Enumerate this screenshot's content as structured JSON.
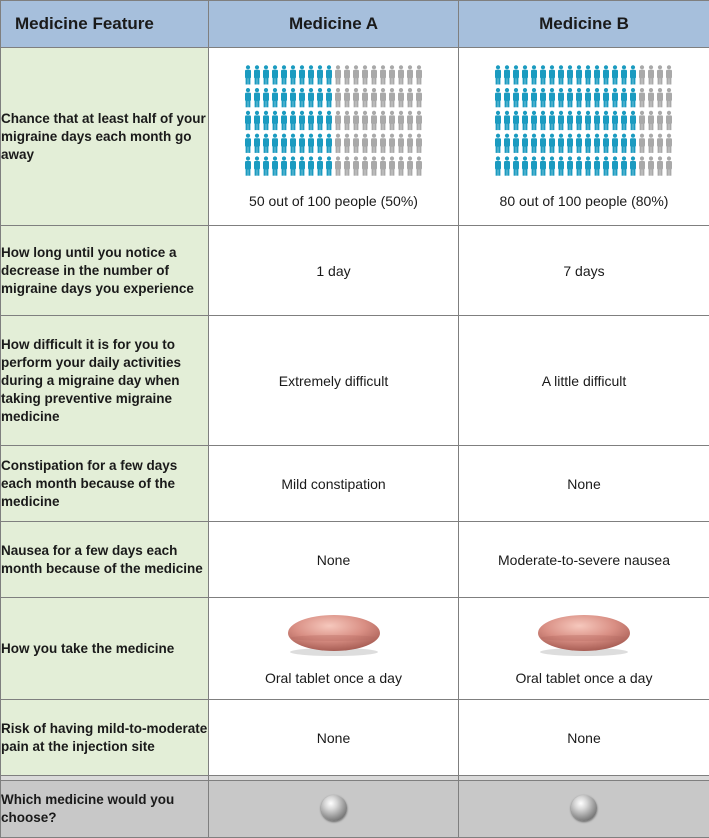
{
  "header": {
    "feature": "Medicine Feature",
    "medicine_a": "Medicine A",
    "medicine_b": "Medicine B"
  },
  "rows": [
    {
      "feature": "Chance that at least half of your migraine days each month go away",
      "a": "50 out of 100 people (50%)",
      "b": "80 out of 100 people (80%)",
      "a_fraction": 0.5,
      "b_fraction": 0.8
    },
    {
      "feature": "How long until you notice a decrease in the number of migraine days you experience",
      "a": "1 day",
      "b": "7 days"
    },
    {
      "feature": "How difficult it is for you to perform your daily activities during a migraine day when taking preventive migraine medicine",
      "a": "Extremely difficult",
      "b": "A little difficult"
    },
    {
      "feature": "Constipation for a few days each month because of the medicine",
      "a": "Mild constipation",
      "b": "None"
    },
    {
      "feature": "Nausea for a few days each month because of the medicine",
      "a": "None",
      "b": "Moderate-to-severe nausea"
    },
    {
      "feature": "How you take the medicine",
      "a": "Oral tablet once a day",
      "b": "Oral tablet once a day"
    },
    {
      "feature": "Risk of having mild-to-moderate pain at the injection site",
      "a": "None",
      "b": "None"
    }
  ],
  "choice": {
    "question": "Which medicine would you choose?"
  },
  "colors": {
    "filled_person": "#1b9bc0",
    "empty_person": "#a9a9a9",
    "header_bg": "#a6bfdc",
    "feature_bg": "#e3eed7",
    "choice_bg": "#c8c8c8",
    "tablet": "#d98f84"
  },
  "icons": {
    "person": "person-icon",
    "tablet": "tablet-icon",
    "radio": "radio-button"
  }
}
